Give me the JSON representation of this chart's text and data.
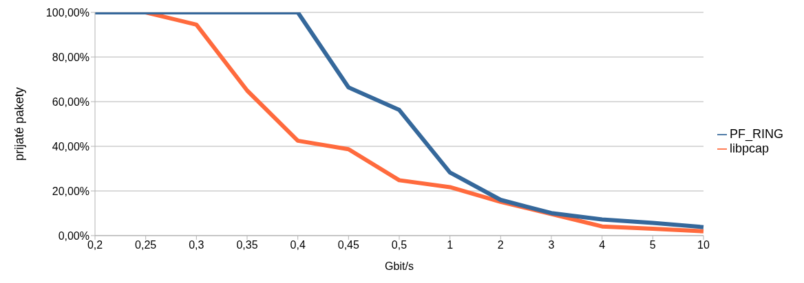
{
  "chart_data": {
    "type": "line",
    "xlabel": "Gbit/s",
    "ylabel": "prijaté pakety",
    "categories": [
      "0,2",
      "0,25",
      "0,3",
      "0,35",
      "0,4",
      "0,45",
      "0,5",
      "1",
      "2",
      "3",
      "4",
      "5",
      "10"
    ],
    "series": [
      {
        "name": "libpcap",
        "color": "#ff6a3d",
        "values": [
          100,
          100,
          94.5,
          65,
          42.5,
          38.7,
          24.8,
          21.7,
          15.1,
          9.7,
          4.1,
          3.1,
          1.9
        ]
      },
      {
        "name": "PF_RING",
        "color": "#35689b",
        "values": [
          100,
          100,
          100,
          100,
          100,
          66.4,
          56.3,
          28.3,
          16,
          10.1,
          7.2,
          5.7,
          3.8
        ]
      }
    ],
    "ylim": [
      0,
      100
    ],
    "yticks": [
      {
        "value": 0,
        "label": "0,00%"
      },
      {
        "value": 20,
        "label": "20,00%"
      },
      {
        "value": 40,
        "label": "40,00%"
      },
      {
        "value": 60,
        "label": "60,00%"
      },
      {
        "value": 80,
        "label": "80,00%"
      },
      {
        "value": 100,
        "label": "100,00%"
      }
    ],
    "grid": "y",
    "legend": "right",
    "marker": "none",
    "line_style": "solid"
  }
}
